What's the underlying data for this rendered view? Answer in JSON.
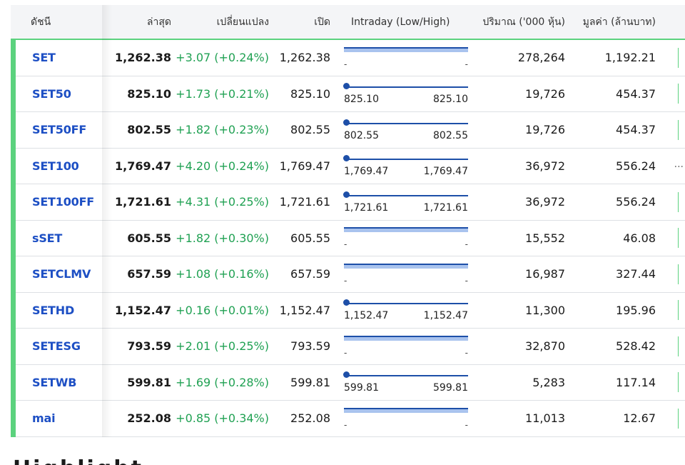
{
  "table": {
    "headers": {
      "name": "ดัชนี",
      "last": "ล่าสุด",
      "change": "เปลี่ยนแปลง",
      "open": "เปิด",
      "intraday": "Intraday (Low/High)",
      "volume": "ปริมาณ ('000 หุ้น)",
      "value": "มูลค่า (ล้านบาท)"
    },
    "rows": [
      {
        "name": "SET",
        "last": "1,262.38",
        "change": "+3.07 (+0.24%)",
        "open": "1,262.38",
        "low": "-",
        "high": "-",
        "range_kind": "band",
        "volume": "278,264",
        "value": "1,192.21",
        "more": "mini"
      },
      {
        "name": "SET50",
        "last": "825.10",
        "change": "+1.73 (+0.21%)",
        "open": "825.10",
        "low": "825.10",
        "high": "825.10",
        "range_kind": "point",
        "volume": "19,726",
        "value": "454.37",
        "more": "mini"
      },
      {
        "name": "SET50FF",
        "last": "802.55",
        "change": "+1.82 (+0.23%)",
        "open": "802.55",
        "low": "802.55",
        "high": "802.55",
        "range_kind": "point",
        "volume": "19,726",
        "value": "454.37",
        "more": "mini"
      },
      {
        "name": "SET100",
        "last": "1,769.47",
        "change": "+4.20 (+0.24%)",
        "open": "1,769.47",
        "low": "1,769.47",
        "high": "1,769.47",
        "range_kind": "point",
        "volume": "36,972",
        "value": "556.24",
        "more": "ellipsis"
      },
      {
        "name": "SET100FF",
        "last": "1,721.61",
        "change": "+4.31 (+0.25%)",
        "open": "1,721.61",
        "low": "1,721.61",
        "high": "1,721.61",
        "range_kind": "point",
        "volume": "36,972",
        "value": "556.24",
        "more": "mini"
      },
      {
        "name": "sSET",
        "last": "605.55",
        "change": "+1.82 (+0.30%)",
        "open": "605.55",
        "low": "-",
        "high": "-",
        "range_kind": "band",
        "volume": "15,552",
        "value": "46.08",
        "more": "mini"
      },
      {
        "name": "SETCLMV",
        "last": "657.59",
        "change": "+1.08 (+0.16%)",
        "open": "657.59",
        "low": "-",
        "high": "-",
        "range_kind": "band",
        "volume": "16,987",
        "value": "327.44",
        "more": "mini"
      },
      {
        "name": "SETHD",
        "last": "1,152.47",
        "change": "+0.16 (+0.01%)",
        "open": "1,152.47",
        "low": "1,152.47",
        "high": "1,152.47",
        "range_kind": "point",
        "volume": "11,300",
        "value": "195.96",
        "more": "mini"
      },
      {
        "name": "SETESG",
        "last": "793.59",
        "change": "+2.01 (+0.25%)",
        "open": "793.59",
        "low": "-",
        "high": "-",
        "range_kind": "band",
        "volume": "32,870",
        "value": "528.42",
        "more": "mini"
      },
      {
        "name": "SETWB",
        "last": "599.81",
        "change": "+1.69 (+0.28%)",
        "open": "599.81",
        "low": "599.81",
        "high": "599.81",
        "range_kind": "point",
        "volume": "5,283",
        "value": "117.14",
        "more": "mini"
      },
      {
        "name": "mai",
        "last": "252.08",
        "change": "+0.85 (+0.34%)",
        "open": "252.08",
        "low": "-",
        "high": "-",
        "range_kind": "band",
        "volume": "11,013",
        "value": "12.67",
        "more": "mini"
      }
    ],
    "ellipsis_text": "···"
  },
  "colors": {
    "accent_green": "#5bd27e",
    "index_link": "#1d4fc4",
    "positive_change": "#20a153",
    "intraday_bar": "#1d4fa8",
    "intraday_band": "#a9c3ee"
  },
  "section_below": {
    "heading": "Highlight"
  }
}
